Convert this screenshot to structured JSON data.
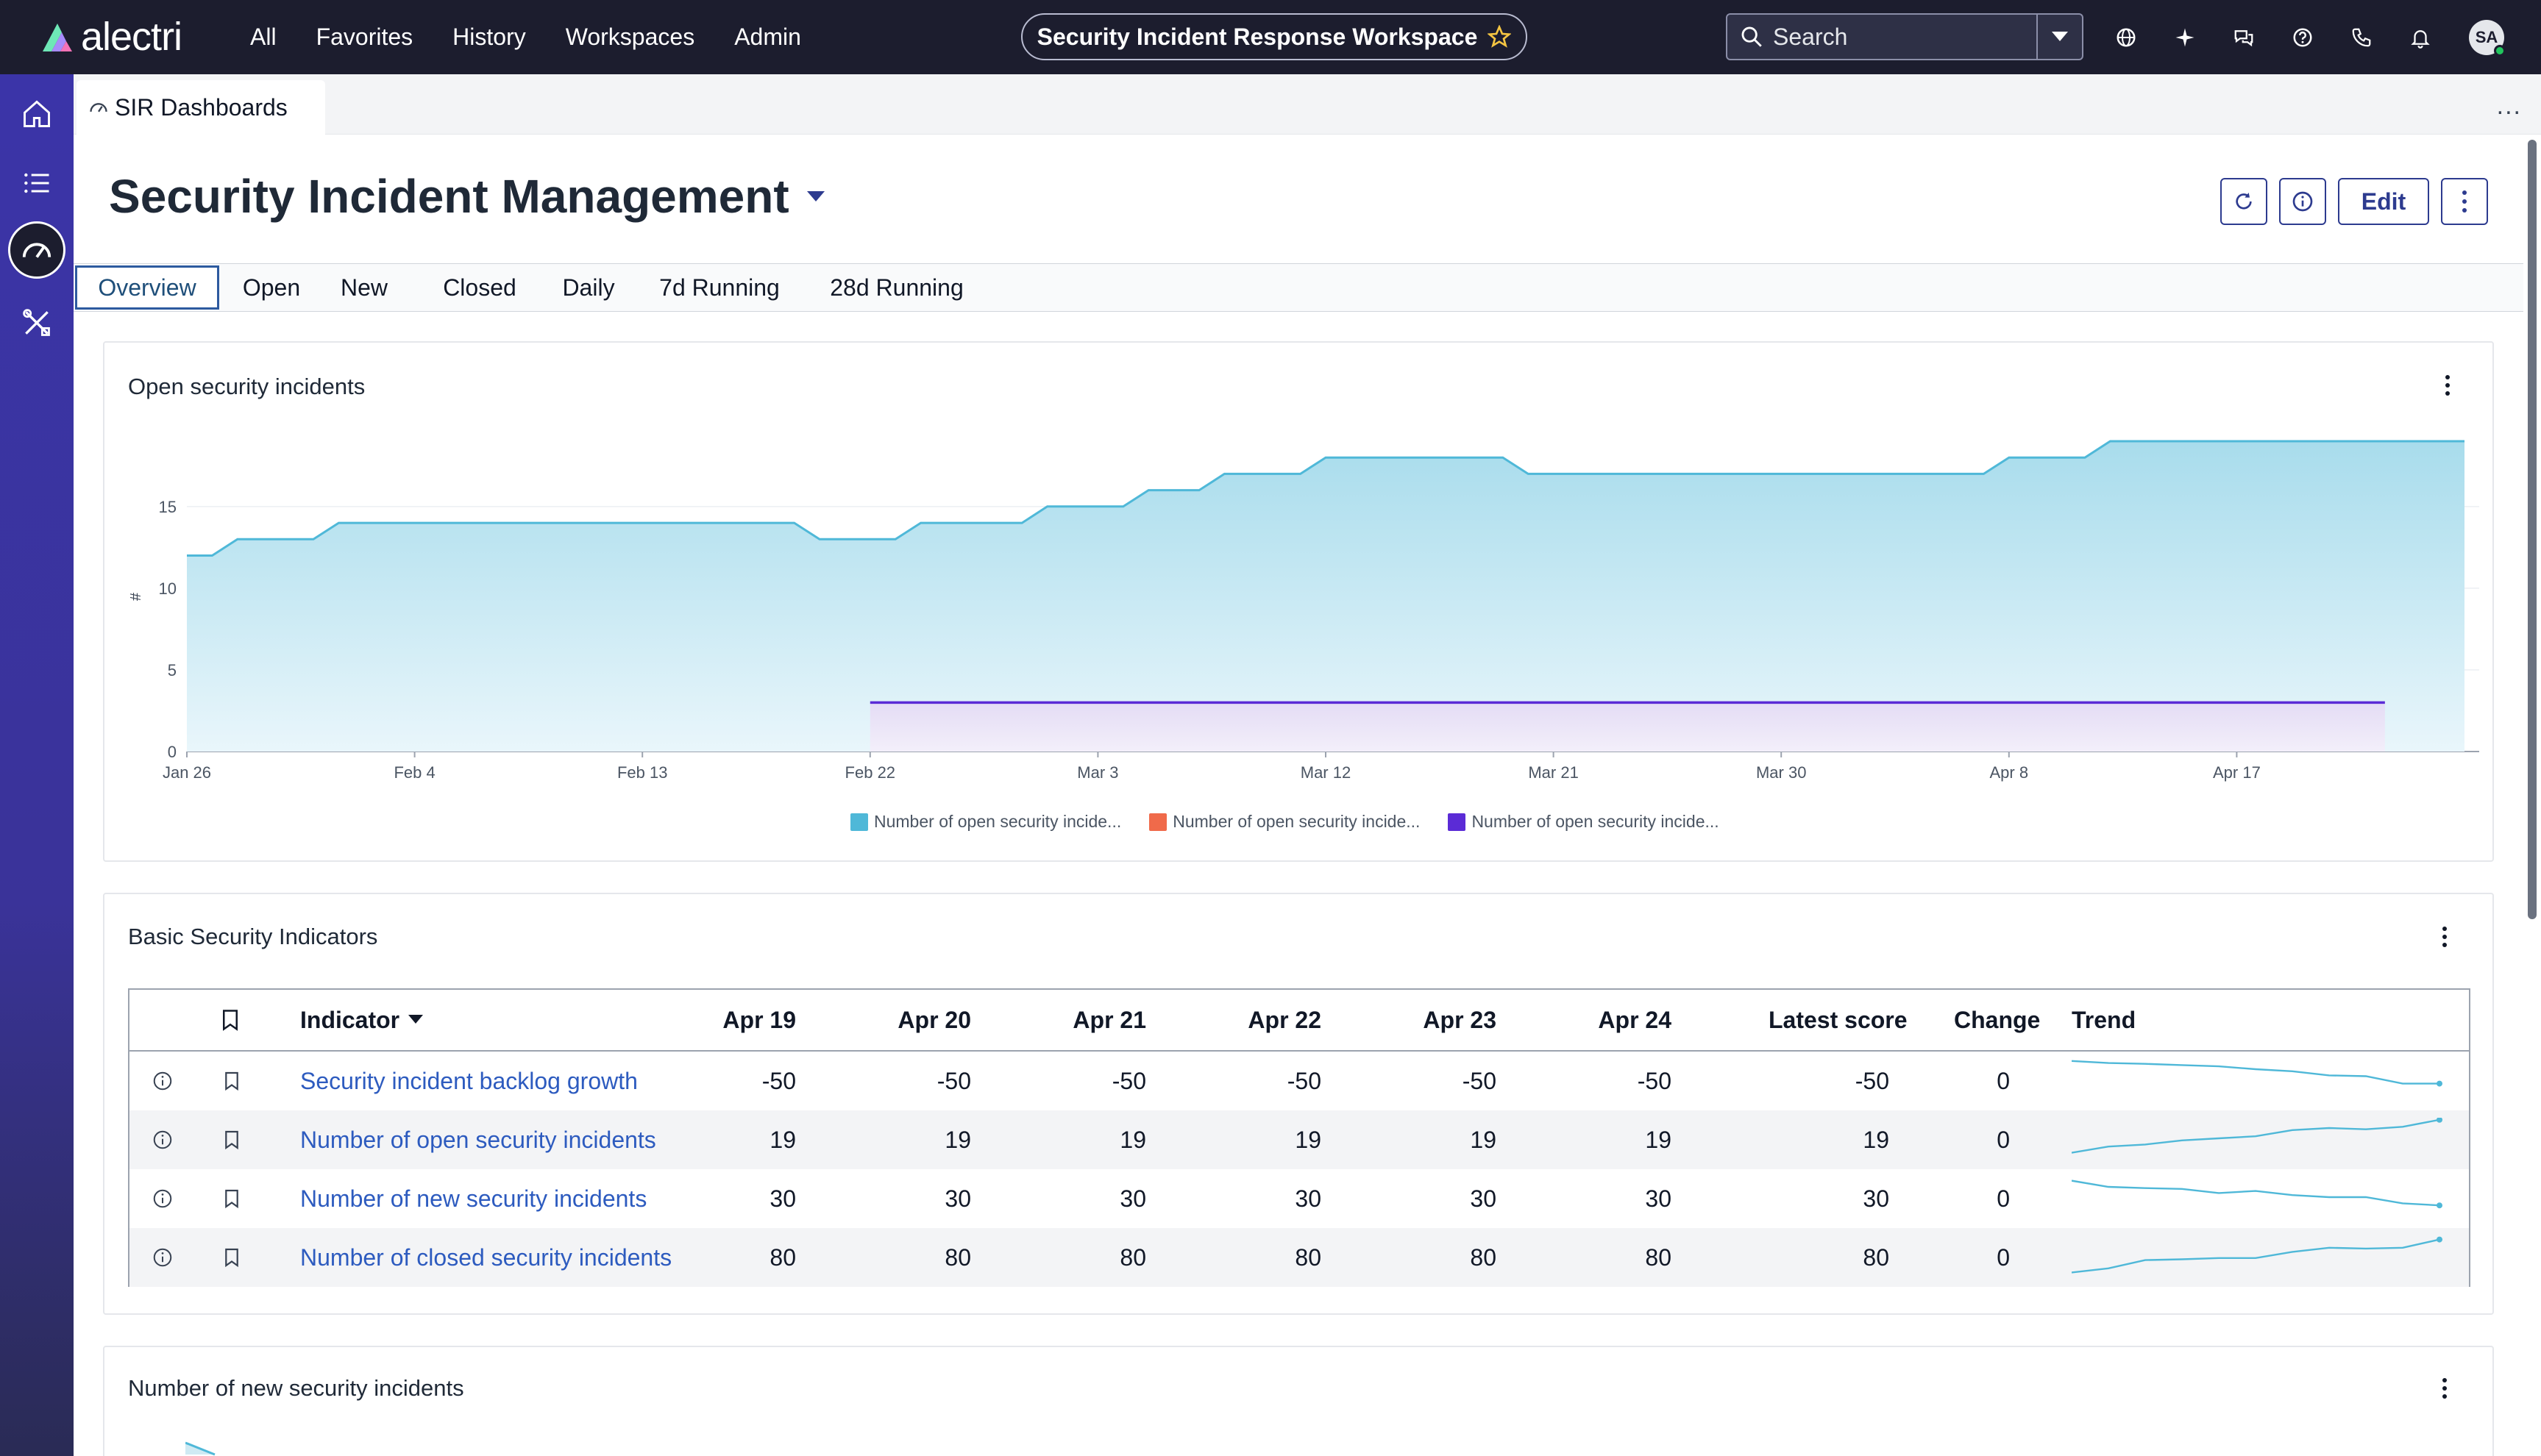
{
  "brand": {
    "name": "alectri"
  },
  "nav": {
    "links": [
      "All",
      "Favorites",
      "History",
      "Workspaces",
      "Admin"
    ]
  },
  "workspace": {
    "title": "Security Incident Response Workspace"
  },
  "search": {
    "placeholder": "Search"
  },
  "user": {
    "initials": "SA"
  },
  "tab_strip": {
    "active_tab": "SIR Dashboards",
    "more": "..."
  },
  "dashboard": {
    "title": "Security Incident Management",
    "edit_label": "Edit",
    "tabs": [
      "Overview",
      "Open",
      "New",
      "Closed",
      "Daily",
      "7d Running",
      "28d Running"
    ],
    "active_tab": "Overview"
  },
  "open_card": {
    "title": "Open security incidents",
    "y_unit": "#"
  },
  "chart_data": {
    "type": "area",
    "x_ticks": [
      "Jan 26",
      "Feb 4",
      "Feb 13",
      "Feb 22",
      "Mar 3",
      "Mar 12",
      "Mar 21",
      "Mar 30",
      "Apr 8",
      "Apr 17"
    ],
    "ylabel": "#",
    "ylim": [
      0,
      19
    ],
    "y_ticks": [
      0,
      5,
      10,
      15
    ],
    "grid": true,
    "legend_placement": "bottom",
    "series": [
      {
        "name": "Number of open security incide...",
        "color": "#4fb8d8",
        "x": [
          "Jan 26",
          "Jan 27",
          "Jan 28",
          "Jan 29",
          "Jan 30",
          "Jan 31",
          "Feb 1",
          "Feb 2",
          "Feb 3",
          "Feb 4",
          "Feb 5",
          "Feb 6",
          "Feb 7",
          "Feb 8",
          "Feb 9",
          "Feb 10",
          "Feb 11",
          "Feb 12",
          "Feb 13",
          "Feb 14",
          "Feb 15",
          "Feb 16",
          "Feb 17",
          "Feb 18",
          "Feb 19",
          "Feb 20",
          "Feb 21",
          "Feb 22",
          "Feb 23",
          "Feb 24",
          "Feb 25",
          "Feb 26",
          "Feb 27",
          "Feb 28",
          "Mar 1",
          "Mar 2",
          "Mar 3",
          "Mar 4",
          "Mar 5",
          "Mar 6",
          "Mar 7",
          "Mar 8",
          "Mar 9",
          "Mar 10",
          "Mar 11",
          "Mar 12",
          "Mar 13",
          "Mar 14",
          "Mar 15",
          "Mar 16",
          "Mar 17",
          "Mar 18",
          "Mar 19",
          "Mar 20",
          "Mar 21",
          "Mar 22",
          "Mar 23",
          "Mar 24",
          "Mar 25",
          "Mar 26",
          "Mar 27",
          "Mar 28",
          "Mar 29",
          "Mar 30",
          "Mar 31",
          "Apr 1",
          "Apr 2",
          "Apr 3",
          "Apr 4",
          "Apr 5",
          "Apr 6",
          "Apr 7",
          "Apr 8",
          "Apr 9",
          "Apr 10",
          "Apr 11",
          "Apr 12",
          "Apr 13",
          "Apr 14",
          "Apr 15",
          "Apr 16",
          "Apr 17",
          "Apr 18",
          "Apr 19",
          "Apr 20",
          "Apr 21",
          "Apr 22",
          "Apr 23",
          "Apr 24"
        ],
        "values": [
          12,
          12,
          13,
          13,
          13,
          13,
          14,
          14,
          14,
          14,
          14,
          14,
          14,
          14,
          14,
          14,
          14,
          14,
          14,
          14,
          14,
          14,
          14,
          14,
          14,
          13,
          13,
          13,
          13,
          14,
          14,
          14,
          14,
          14,
          15,
          15,
          15,
          15,
          16,
          16,
          16,
          17,
          17,
          17,
          17,
          18,
          18,
          18,
          18,
          18,
          18,
          18,
          18,
          17,
          17,
          17,
          17,
          17,
          17,
          17,
          17,
          17,
          17,
          17,
          17,
          17,
          17,
          17,
          17,
          17,
          17,
          17,
          18,
          18,
          18,
          18,
          19,
          19,
          19,
          19,
          19,
          19,
          19,
          19,
          19,
          19,
          19,
          19,
          19
        ]
      },
      {
        "name": "Number of open security incide...",
        "color": "#f06a4a",
        "values": []
      },
      {
        "name": "Number of open security incide...",
        "color": "#5b2bd6",
        "x_range": [
          "Feb 22",
          "Apr 22"
        ],
        "values": [
          3,
          3
        ]
      }
    ]
  },
  "indicators_card": {
    "title": "Basic Security Indicators",
    "columns": [
      "Indicator",
      "Apr 19",
      "Apr 20",
      "Apr 21",
      "Apr 22",
      "Apr 23",
      "Apr 24",
      "Latest score",
      "Change",
      "Trend"
    ],
    "rows": [
      {
        "name": "Security incident backlog growth",
        "values": [
          "-50",
          "-50",
          "-50",
          "-50",
          "-50",
          "-50"
        ],
        "latest": "-50",
        "change": "0",
        "trend": [
          0.95,
          0.9,
          0.88,
          0.85,
          0.82,
          0.75,
          0.7,
          0.6,
          0.58,
          0.4,
          0.4
        ]
      },
      {
        "name": "Number of open security incidents",
        "values": [
          "19",
          "19",
          "19",
          "19",
          "19",
          "19"
        ],
        "latest": "19",
        "change": "0",
        "trend": [
          0.15,
          0.3,
          0.35,
          0.45,
          0.5,
          0.55,
          0.7,
          0.75,
          0.72,
          0.78,
          0.95
        ]
      },
      {
        "name": "Number of new security incidents",
        "values": [
          "30",
          "30",
          "30",
          "30",
          "30",
          "30"
        ],
        "latest": "30",
        "change": "0",
        "trend": [
          0.9,
          0.75,
          0.72,
          0.7,
          0.6,
          0.65,
          0.55,
          0.5,
          0.5,
          0.35,
          0.3
        ]
      },
      {
        "name": "Number of closed security incidents",
        "values": [
          "80",
          "80",
          "80",
          "80",
          "80",
          "80"
        ],
        "latest": "80",
        "change": "0",
        "trend": [
          0.1,
          0.2,
          0.4,
          0.42,
          0.45,
          0.45,
          0.6,
          0.7,
          0.68,
          0.7,
          0.9
        ]
      }
    ]
  },
  "new_card": {
    "title": "Number of new security incidents"
  },
  "colors": {
    "topnav": "#1c1d2e",
    "accent": "#2d3b8f",
    "link": "#2d5bbf",
    "chart_line": "#4fb8d8",
    "chart_purple": "#5b2bd6"
  }
}
